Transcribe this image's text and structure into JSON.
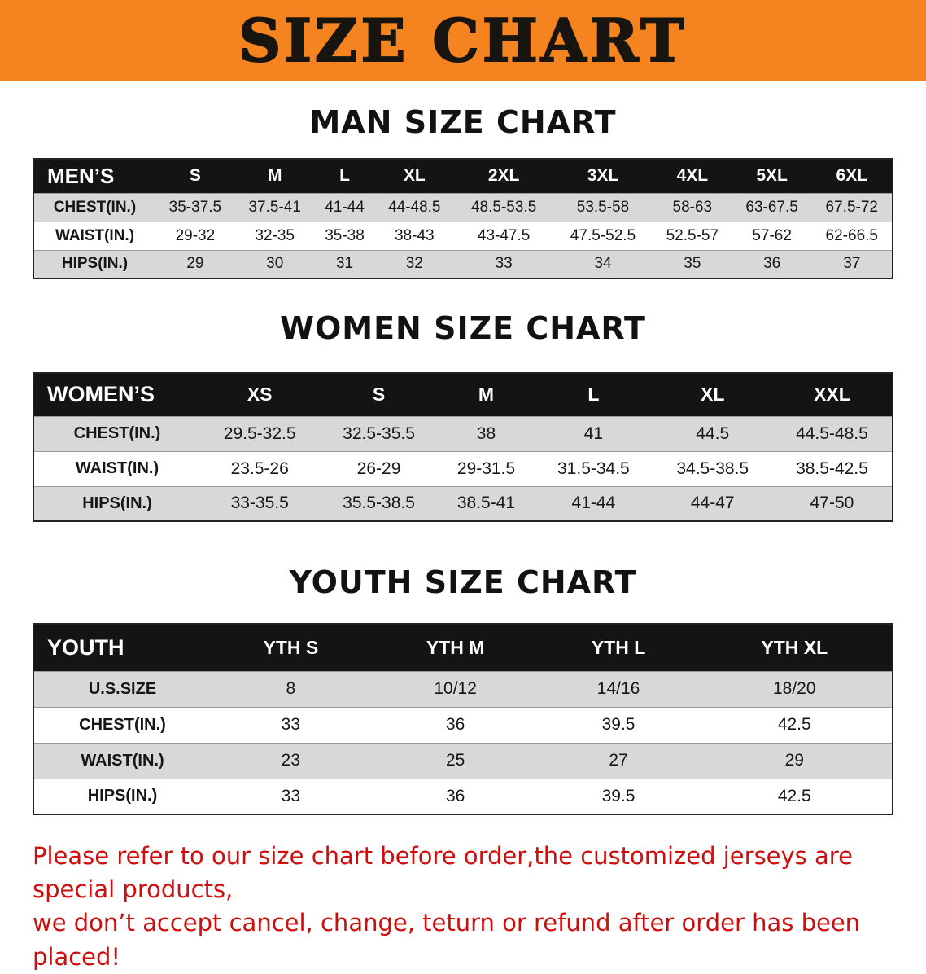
{
  "banner": {
    "title": "SIZE CHART",
    "bg_color": "#f5831f"
  },
  "men": {
    "heading": "MAN SIZE CHART",
    "header": [
      "MEN’S",
      "S",
      "M",
      "L",
      "XL",
      "2XL",
      "3XL",
      "4XL",
      "5XL",
      "6XL"
    ],
    "rows": [
      {
        "label": "CHEST(IN.)",
        "values": [
          "35-37.5",
          "37.5-41",
          "41-44",
          "44-48.5",
          "48.5-53.5",
          "53.5-58",
          "58-63",
          "63-67.5",
          "67.5-72"
        ]
      },
      {
        "label": "WAIST(IN.)",
        "values": [
          "29-32",
          "32-35",
          "35-38",
          "38-43",
          "43-47.5",
          "47.5-52.5",
          "52.5-57",
          "57-62",
          "62-66.5"
        ]
      },
      {
        "label": "HIPS(IN.)",
        "values": [
          "29",
          "30",
          "31",
          "32",
          "33",
          "34",
          "35",
          "36",
          "37"
        ]
      }
    ]
  },
  "women": {
    "heading": "WOMEN SIZE CHART",
    "header": [
      "WOMEN’S",
      "XS",
      "S",
      "M",
      "L",
      "XL",
      "XXL"
    ],
    "rows": [
      {
        "label": "CHEST(IN.)",
        "values": [
          "29.5-32.5",
          "32.5-35.5",
          "38",
          "41",
          "44.5",
          "44.5-48.5"
        ]
      },
      {
        "label": "WAIST(IN.)",
        "values": [
          "23.5-26",
          "26-29",
          "29-31.5",
          "31.5-34.5",
          "34.5-38.5",
          "38.5-42.5"
        ]
      },
      {
        "label": "HIPS(IN.)",
        "values": [
          "33-35.5",
          "35.5-38.5",
          "38.5-41",
          "41-44",
          "44-47",
          "47-50"
        ]
      }
    ]
  },
  "youth": {
    "heading": "YOUTH SIZE CHART",
    "header": [
      "YOUTH",
      "YTH S",
      "YTH M",
      "YTH L",
      "YTH XL"
    ],
    "rows": [
      {
        "label": "U.S.SIZE",
        "values": [
          "8",
          "10/12",
          "14/16",
          "18/20"
        ]
      },
      {
        "label": "CHEST(IN.)",
        "values": [
          "33",
          "36",
          "39.5",
          "42.5"
        ]
      },
      {
        "label": "WAIST(IN.)",
        "values": [
          "23",
          "25",
          "27",
          "29"
        ]
      },
      {
        "label": "HIPS(IN.)",
        "values": [
          "33",
          "36",
          "39.5",
          "42.5"
        ]
      }
    ]
  },
  "note": {
    "line1": "Please refer to our size chart before order,the customized jerseys are special products,",
    "line2": "we don’t accept cancel, change, teturn or refund after order has been placed!",
    "color": "#ce0d0d"
  }
}
